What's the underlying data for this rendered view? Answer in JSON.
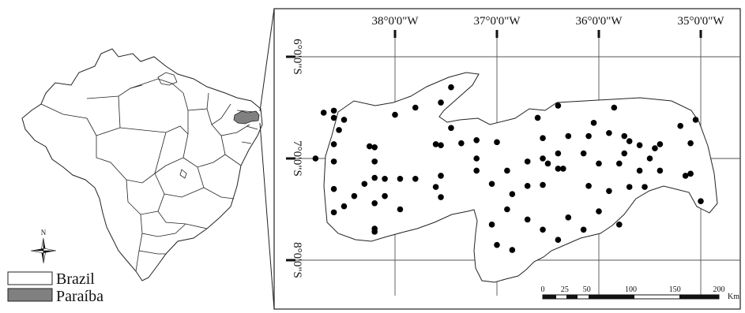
{
  "legend": {
    "items": [
      {
        "label": "Brazil",
        "fill": "#ffffff"
      },
      {
        "label": "Paraíba",
        "fill": "#808080"
      }
    ]
  },
  "north_arrow": {
    "label": "N"
  },
  "graticule": {
    "longitudes": [
      {
        "label": "38°0'0\"W",
        "value": -38
      },
      {
        "label": "37°0'0\"W",
        "value": -37
      },
      {
        "label": "36°0'0\"W",
        "value": -36
      },
      {
        "label": "35°0'0\"W",
        "value": -35
      }
    ],
    "latitudes": [
      {
        "label": "6°0'0\"S",
        "value": -6
      },
      {
        "label": "7°0'0\"S",
        "value": -7
      },
      {
        "label": "8°0'0\"S",
        "value": -8
      }
    ]
  },
  "scale_bar": {
    "ticks": [
      "0",
      "25",
      "50",
      "100",
      "150",
      "200"
    ],
    "unit": "Km"
  },
  "colors": {
    "boundary": "#222222",
    "highlight": "#808080",
    "station": "#000000",
    "grid": "#555555"
  },
  "stations": [
    [
      -38.7,
      -6.55
    ],
    [
      -38.6,
      -6.53
    ],
    [
      -38.5,
      -6.62
    ],
    [
      -38.6,
      -6.6
    ],
    [
      -38.55,
      -6.72
    ],
    [
      -38.6,
      -6.86
    ],
    [
      -38.25,
      -6.88
    ],
    [
      -38.2,
      -6.89
    ],
    [
      -38.78,
      -7.0
    ],
    [
      -38.6,
      -7.03
    ],
    [
      -38.2,
      -7.03
    ],
    [
      -38.2,
      -7.19
    ],
    [
      -38.1,
      -7.2
    ],
    [
      -38.3,
      -7.25
    ],
    [
      -38.6,
      -7.3
    ],
    [
      -38.4,
      -7.37
    ],
    [
      -38.1,
      -7.37
    ],
    [
      -38.2,
      -7.44
    ],
    [
      -38.5,
      -7.47
    ],
    [
      -38.6,
      -7.53
    ],
    [
      -38.2,
      -7.69
    ],
    [
      -38.2,
      -7.72
    ],
    [
      -37.95,
      -7.2
    ],
    [
      -37.8,
      -7.2
    ],
    [
      -37.55,
      -7.17
    ],
    [
      -37.55,
      -7.38
    ],
    [
      -37.95,
      -7.5
    ],
    [
      -38.0,
      -6.57
    ],
    [
      -37.8,
      -6.5
    ],
    [
      -37.55,
      -6.45
    ],
    [
      -37.45,
      -6.3
    ],
    [
      -37.45,
      -6.7
    ],
    [
      -37.6,
      -6.86
    ],
    [
      -37.55,
      -6.87
    ],
    [
      -37.35,
      -6.85
    ],
    [
      -37.2,
      -6.82
    ],
    [
      -37.0,
      -6.84
    ],
    [
      -37.2,
      -7.0
    ],
    [
      -36.9,
      -7.12
    ],
    [
      -36.7,
      -7.03
    ],
    [
      -36.55,
      -7.0
    ],
    [
      -36.5,
      -7.05
    ],
    [
      -36.4,
      -7.1
    ],
    [
      -36.55,
      -7.26
    ],
    [
      -36.7,
      -7.27
    ],
    [
      -36.85,
      -7.35
    ],
    [
      -36.9,
      -7.5
    ],
    [
      -37.05,
      -7.25
    ],
    [
      -37.05,
      -7.65
    ],
    [
      -37.0,
      -7.85
    ],
    [
      -36.85,
      -7.9
    ],
    [
      -36.7,
      -7.6
    ],
    [
      -36.55,
      -7.7
    ],
    [
      -36.4,
      -7.8
    ],
    [
      -36.3,
      -7.58
    ],
    [
      -36.15,
      -7.7
    ],
    [
      -36.0,
      -7.52
    ],
    [
      -35.8,
      -7.65
    ],
    [
      -35.9,
      -7.32
    ],
    [
      -35.7,
      -7.28
    ],
    [
      -35.55,
      -7.28
    ],
    [
      -35.6,
      -7.12
    ],
    [
      -35.4,
      -7.12
    ],
    [
      -35.15,
      -7.17
    ],
    [
      -35.1,
      -7.15
    ],
    [
      -35.0,
      -7.42
    ],
    [
      -35.1,
      -6.85
    ],
    [
      -35.05,
      -6.62
    ],
    [
      -35.2,
      -6.68
    ],
    [
      -35.4,
      -6.86
    ],
    [
      -35.45,
      -6.9
    ],
    [
      -35.6,
      -6.87
    ],
    [
      -35.7,
      -6.83
    ],
    [
      -35.75,
      -6.78
    ],
    [
      -35.9,
      -6.75
    ],
    [
      -36.05,
      -6.65
    ],
    [
      -36.1,
      -6.78
    ],
    [
      -36.3,
      -6.78
    ],
    [
      -36.4,
      -6.95
    ],
    [
      -36.6,
      -6.6
    ],
    [
      -36.55,
      -6.8
    ],
    [
      -36.15,
      -6.95
    ],
    [
      -36.0,
      -7.05
    ],
    [
      -35.8,
      -7.05
    ],
    [
      -35.75,
      -6.95
    ],
    [
      -35.5,
      -7.0
    ],
    [
      -35.85,
      -6.5
    ],
    [
      -36.4,
      -6.48
    ],
    [
      -36.35,
      -7.1
    ],
    [
      -36.1,
      -7.27
    ],
    [
      -37.2,
      -7.12
    ],
    [
      -37.6,
      -7.28
    ]
  ]
}
